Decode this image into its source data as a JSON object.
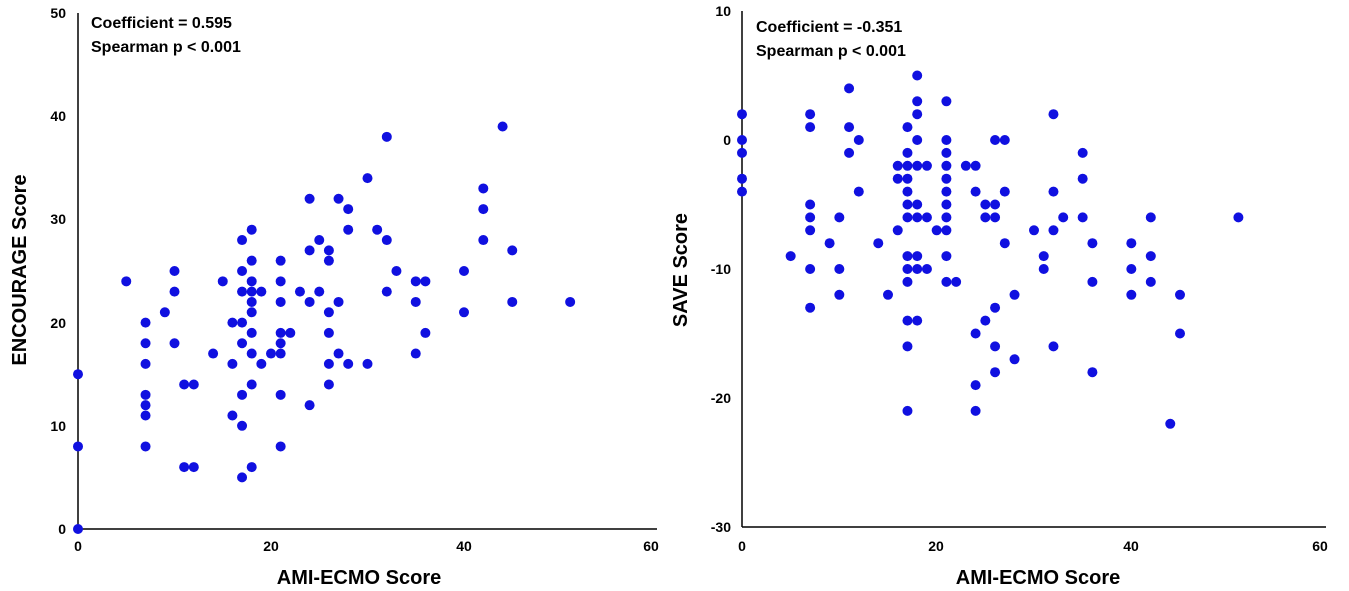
{
  "chart_data": [
    {
      "type": "scatter",
      "xlabel": "AMI-ECMO Score",
      "ylabel": "ENCOURAGE Score",
      "xlim": [
        0,
        60
      ],
      "ylim": [
        0,
        50
      ],
      "x_ticks": [
        "0",
        "20",
        "40",
        "60"
      ],
      "y_ticks": [
        "0",
        "10",
        "20",
        "30",
        "40",
        "50"
      ],
      "grid": false,
      "point_color": "#1010e0",
      "annotations": [
        "Coefficient = 0.595",
        "Spearman p < 0.001"
      ],
      "points": [
        [
          0,
          0
        ],
        [
          0,
          8
        ],
        [
          0,
          15
        ],
        [
          5,
          24
        ],
        [
          7,
          8
        ],
        [
          7,
          11
        ],
        [
          7,
          12
        ],
        [
          7,
          13
        ],
        [
          7,
          16
        ],
        [
          7,
          18
        ],
        [
          7,
          20
        ],
        [
          9,
          21
        ],
        [
          10,
          18
        ],
        [
          10,
          23
        ],
        [
          10,
          25
        ],
        [
          11,
          6
        ],
        [
          11,
          14
        ],
        [
          12,
          6
        ],
        [
          12,
          14
        ],
        [
          14,
          17
        ],
        [
          15,
          24
        ],
        [
          16,
          11
        ],
        [
          16,
          16
        ],
        [
          16,
          20
        ],
        [
          17,
          5
        ],
        [
          17,
          10
        ],
        [
          17,
          13
        ],
        [
          17,
          18
        ],
        [
          17,
          20
        ],
        [
          17,
          23
        ],
        [
          17,
          25
        ],
        [
          17,
          28
        ],
        [
          18,
          6
        ],
        [
          18,
          14
        ],
        [
          18,
          17
        ],
        [
          18,
          19
        ],
        [
          18,
          21
        ],
        [
          18,
          22
        ],
        [
          18,
          23
        ],
        [
          18,
          24
        ],
        [
          18,
          26
        ],
        [
          18,
          29
        ],
        [
          19,
          16
        ],
        [
          19,
          23
        ],
        [
          20,
          17
        ],
        [
          21,
          8
        ],
        [
          21,
          13
        ],
        [
          21,
          17
        ],
        [
          21,
          18
        ],
        [
          21,
          19
        ],
        [
          21,
          22
        ],
        [
          21,
          24
        ],
        [
          21,
          26
        ],
        [
          22,
          19
        ],
        [
          23,
          23
        ],
        [
          24,
          12
        ],
        [
          24,
          22
        ],
        [
          24,
          27
        ],
        [
          24,
          32
        ],
        [
          25,
          23
        ],
        [
          25,
          28
        ],
        [
          26,
          14
        ],
        [
          26,
          16
        ],
        [
          26,
          19
        ],
        [
          26,
          21
        ],
        [
          26,
          26
        ],
        [
          26,
          27
        ],
        [
          27,
          17
        ],
        [
          27,
          22
        ],
        [
          27,
          32
        ],
        [
          28,
          16
        ],
        [
          28,
          29
        ],
        [
          28,
          31
        ],
        [
          30,
          16
        ],
        [
          30,
          34
        ],
        [
          31,
          29
        ],
        [
          32,
          23
        ],
        [
          32,
          28
        ],
        [
          32,
          38
        ],
        [
          33,
          25
        ],
        [
          35,
          17
        ],
        [
          35,
          22
        ],
        [
          35,
          24
        ],
        [
          36,
          19
        ],
        [
          36,
          24
        ],
        [
          40,
          21
        ],
        [
          40,
          25
        ],
        [
          42,
          28
        ],
        [
          42,
          31
        ],
        [
          42,
          33
        ],
        [
          44,
          39
        ],
        [
          45,
          22
        ],
        [
          45,
          27
        ],
        [
          51,
          22
        ]
      ]
    },
    {
      "type": "scatter",
      "xlabel": "AMI-ECMO Score",
      "ylabel": "SAVE Score",
      "xlim": [
        0,
        60
      ],
      "ylim": [
        -30,
        10
      ],
      "x_ticks": [
        "0",
        "20",
        "40",
        "60"
      ],
      "y_ticks": [
        "-30",
        "-20",
        "-10",
        "0",
        "10"
      ],
      "grid": false,
      "point_color": "#1010e0",
      "annotations": [
        "Coefficient = -0.351",
        "Spearman p < 0.001"
      ],
      "points": [
        [
          0,
          2
        ],
        [
          0,
          0
        ],
        [
          0,
          -1
        ],
        [
          0,
          -3
        ],
        [
          0,
          -4
        ],
        [
          5,
          -9
        ],
        [
          7,
          2
        ],
        [
          7,
          1
        ],
        [
          7,
          -5
        ],
        [
          7,
          -6
        ],
        [
          7,
          -7
        ],
        [
          7,
          -10
        ],
        [
          7,
          -13
        ],
        [
          9,
          -8
        ],
        [
          10,
          -6
        ],
        [
          10,
          -10
        ],
        [
          10,
          -12
        ],
        [
          11,
          4
        ],
        [
          11,
          1
        ],
        [
          11,
          -1
        ],
        [
          12,
          0
        ],
        [
          12,
          -4
        ],
        [
          14,
          -8
        ],
        [
          15,
          -12
        ],
        [
          16,
          -2
        ],
        [
          16,
          -3
        ],
        [
          16,
          -7
        ],
        [
          17,
          1
        ],
        [
          17,
          -1
        ],
        [
          17,
          -2
        ],
        [
          17,
          -3
        ],
        [
          17,
          -4
        ],
        [
          17,
          -5
        ],
        [
          17,
          -6
        ],
        [
          17,
          -9
        ],
        [
          17,
          -10
        ],
        [
          17,
          -11
        ],
        [
          17,
          -14
        ],
        [
          17,
          -16
        ],
        [
          17,
          -21
        ],
        [
          18,
          5
        ],
        [
          18,
          3
        ],
        [
          18,
          2
        ],
        [
          18,
          0
        ],
        [
          18,
          -2
        ],
        [
          18,
          -5
        ],
        [
          18,
          -6
        ],
        [
          18,
          -9
        ],
        [
          18,
          -10
        ],
        [
          18,
          -14
        ],
        [
          19,
          -2
        ],
        [
          19,
          -6
        ],
        [
          19,
          -10
        ],
        [
          20,
          -7
        ],
        [
          21,
          3
        ],
        [
          21,
          0
        ],
        [
          21,
          -1
        ],
        [
          21,
          -2
        ],
        [
          21,
          -3
        ],
        [
          21,
          -4
        ],
        [
          21,
          -5
        ],
        [
          21,
          -6
        ],
        [
          21,
          -7
        ],
        [
          21,
          -9
        ],
        [
          21,
          -11
        ],
        [
          22,
          -11
        ],
        [
          23,
          -2
        ],
        [
          24,
          -2
        ],
        [
          24,
          -4
        ],
        [
          24,
          -15
        ],
        [
          24,
          -19
        ],
        [
          24,
          -21
        ],
        [
          25,
          -5
        ],
        [
          25,
          -6
        ],
        [
          25,
          -14
        ],
        [
          26,
          0
        ],
        [
          26,
          -5
        ],
        [
          26,
          -6
        ],
        [
          26,
          -13
        ],
        [
          26,
          -16
        ],
        [
          26,
          -18
        ],
        [
          27,
          0
        ],
        [
          27,
          -4
        ],
        [
          27,
          -8
        ],
        [
          28,
          -12
        ],
        [
          28,
          -17
        ],
        [
          30,
          -7
        ],
        [
          31,
          -9
        ],
        [
          31,
          -10
        ],
        [
          32,
          2
        ],
        [
          32,
          -4
        ],
        [
          32,
          -7
        ],
        [
          32,
          -16
        ],
        [
          33,
          -6
        ],
        [
          35,
          -1
        ],
        [
          35,
          -3
        ],
        [
          35,
          -6
        ],
        [
          36,
          -8
        ],
        [
          36,
          -11
        ],
        [
          36,
          -18
        ],
        [
          40,
          -8
        ],
        [
          40,
          -10
        ],
        [
          40,
          -12
        ],
        [
          42,
          -6
        ],
        [
          42,
          -9
        ],
        [
          42,
          -11
        ],
        [
          44,
          -22
        ],
        [
          45,
          -12
        ],
        [
          45,
          -15
        ],
        [
          51,
          -6
        ]
      ]
    }
  ]
}
